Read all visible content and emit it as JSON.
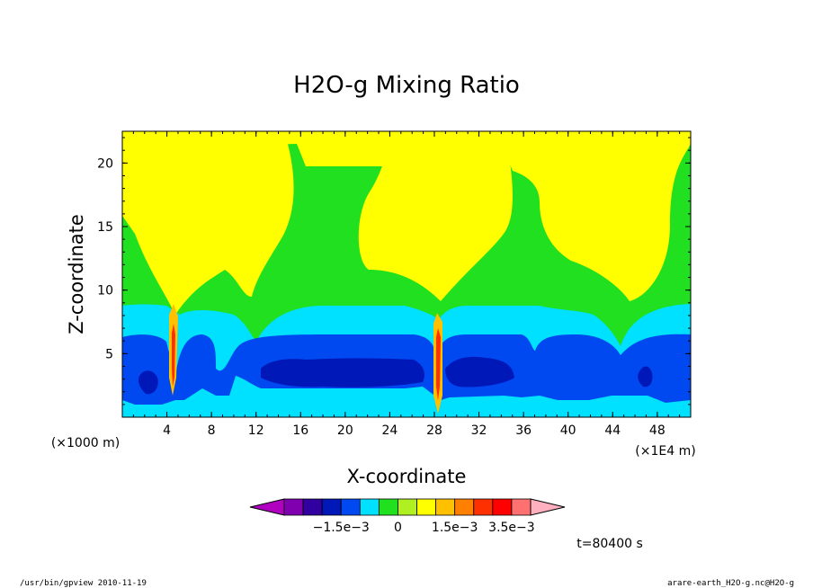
{
  "chart_data": {
    "type": "contour",
    "title": "H2O-g Mixing Ratio",
    "xlabel": "X-coordinate",
    "ylabel": "Z-coordinate",
    "x_unit_label": "(×1000 m)",
    "x_scale_label": "(×1E4 m)",
    "xlim": [
      0,
      51
    ],
    "ylim": [
      0,
      22.5
    ],
    "xticks": [
      "4",
      "8",
      "12",
      "16",
      "20",
      "24",
      "28",
      "32",
      "36",
      "40",
      "44",
      "48"
    ],
    "yticks": [
      "5",
      "10",
      "15",
      "20"
    ],
    "colorbar": {
      "colors": [
        "#b000c0",
        "#8000b0",
        "#3000a0",
        "#0018b8",
        "#0048f0",
        "#00e0ff",
        "#20e020",
        "#b0f020",
        "#ffff00",
        "#ffc000",
        "#ff8000",
        "#ff3000",
        "#ff0000",
        "#ff7070",
        "#ffb0c0"
      ],
      "labels": [
        "−1.5e−3",
        "0",
        "1.5e−3",
        "3.5e−3"
      ]
    },
    "time_label": "t=80400 s",
    "footer_left": "/usr/bin/gpview  2010-11-19",
    "footer_right": "arare-earth_H2O-g.nc@H2O-g",
    "colors": {
      "yellow": "#ffff00",
      "green": "#20e020",
      "cyan": "#00e0ff",
      "blue": "#0048f0",
      "darkblue": "#0018b8",
      "navy": "#000080"
    }
  }
}
